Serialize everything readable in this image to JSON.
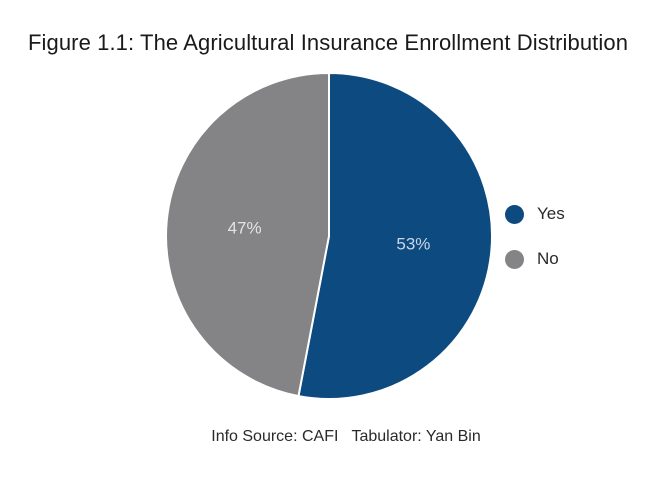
{
  "chart_data": {
    "type": "pie",
    "title": "Figure 1.1: The Agricultural Insurance Enrollment Distribution",
    "categories": [
      "Yes",
      "No"
    ],
    "values": [
      53,
      47
    ],
    "value_labels": [
      "53%",
      "47%"
    ],
    "colors": [
      "#0d4a80",
      "#848486"
    ],
    "label_colors": [
      "#c9d7e6",
      "#e4e4e4"
    ],
    "legend": {
      "position": "right",
      "items": [
        "Yes",
        "No"
      ]
    },
    "caption": "Info Source: CAFI   Tabulator: Yan Bin"
  }
}
